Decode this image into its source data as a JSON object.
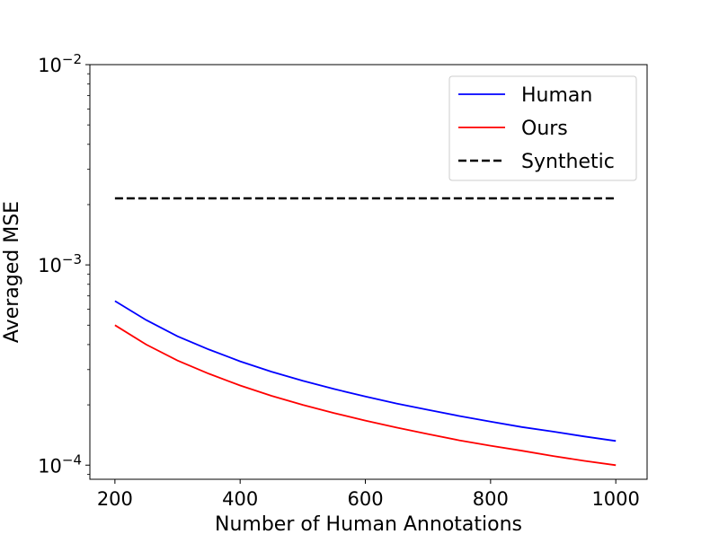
{
  "chart_data": {
    "type": "line",
    "title": "",
    "xlabel": "Number of Human Annotations",
    "ylabel": "Averaged MSE",
    "xlim": [
      160,
      1050
    ],
    "ylim": [
      8.5e-05,
      0.01
    ],
    "yscale": "log",
    "xticks": [
      {
        "value": 200,
        "label": "200"
      },
      {
        "value": 400,
        "label": "400"
      },
      {
        "value": 600,
        "label": "600"
      },
      {
        "value": 800,
        "label": "800"
      },
      {
        "value": 1000,
        "label": "1000"
      }
    ],
    "yticks": [
      {
        "value": 0.0001,
        "base": "10",
        "exp": "−4"
      },
      {
        "value": 0.001,
        "base": "10",
        "exp": "−3"
      },
      {
        "value": 0.01,
        "base": "10",
        "exp": "−2"
      }
    ],
    "grid": false,
    "legend_position": "top-right",
    "series": [
      {
        "name": "Human",
        "color": "#0000ff",
        "dash": "solid",
        "x": [
          200,
          250,
          300,
          350,
          400,
          450,
          500,
          550,
          600,
          650,
          700,
          750,
          800,
          850,
          900,
          950,
          1000
        ],
        "y": [
          0.00066,
          0.00053,
          0.00044,
          0.000378,
          0.00033,
          0.000293,
          0.000264,
          0.00024,
          0.00022,
          0.000203,
          0.000189,
          0.000176,
          0.000165,
          0.000155,
          0.000147,
          0.000139,
          0.000132
        ]
      },
      {
        "name": "Ours",
        "color": "#ff0000",
        "dash": "solid",
        "x": [
          200,
          250,
          300,
          350,
          400,
          450,
          500,
          550,
          600,
          650,
          700,
          750,
          800,
          850,
          900,
          950,
          1000
        ],
        "y": [
          0.0005,
          0.0004,
          0.000333,
          0.000286,
          0.00025,
          0.000222,
          0.0002,
          0.000182,
          0.000167,
          0.000154,
          0.000143,
          0.000133,
          0.000125,
          0.000118,
          0.000111,
          0.000105,
          0.0001
        ]
      },
      {
        "name": "Synthetic",
        "color": "#000000",
        "dash": "dashed",
        "x": [
          200,
          1000
        ],
        "y": [
          0.00215,
          0.00215
        ]
      }
    ]
  }
}
